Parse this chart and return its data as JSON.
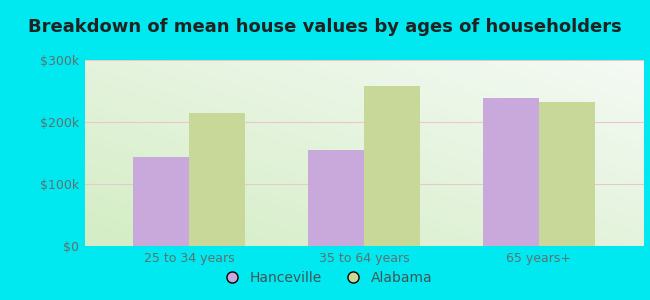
{
  "title": "Breakdown of mean house values by ages of householders",
  "categories": [
    "25 to 34 years",
    "35 to 64 years",
    "65 years+"
  ],
  "hanceville_values": [
    143000,
    155000,
    238000
  ],
  "alabama_values": [
    215000,
    258000,
    232000
  ],
  "hanceville_color": "#c9a8dc",
  "alabama_color": "#c8d898",
  "background_outer": "#00e8f0",
  "ylim": [
    0,
    300000
  ],
  "yticks": [
    0,
    100000,
    200000,
    300000
  ],
  "ytick_labels": [
    "$0",
    "$100k",
    "$200k",
    "$300k"
  ],
  "legend_labels": [
    "Hanceville",
    "Alabama"
  ],
  "bar_width": 0.32,
  "title_fontsize": 13,
  "tick_fontsize": 9,
  "legend_fontsize": 10
}
